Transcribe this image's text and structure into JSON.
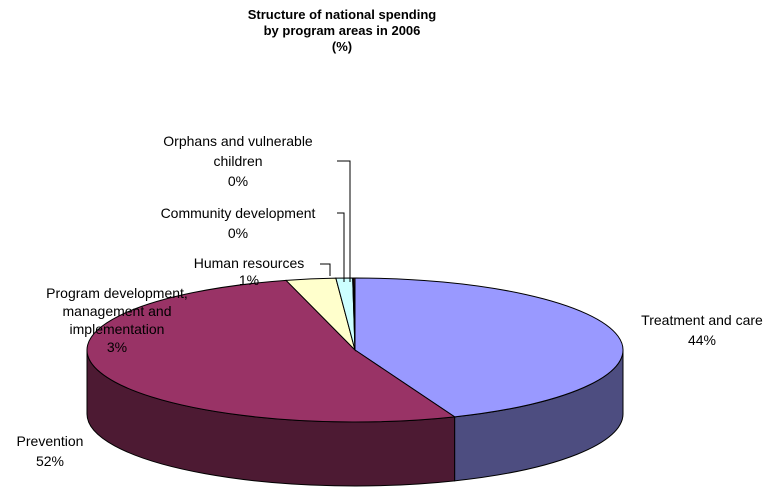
{
  "chart_data": {
    "type": "pie",
    "style": "3d",
    "title": [
      "Structure of national spending",
      "by program areas in 2006",
      "(%)"
    ],
    "slices": [
      {
        "name": "Treatment and care",
        "value": 44,
        "label": "44%",
        "color": "#9999ff",
        "side_color": "#4d4d80"
      },
      {
        "name": "Prevention",
        "value": 52,
        "label": "52%",
        "color": "#993366",
        "side_color": "#4d1a33"
      },
      {
        "name": "Program development, management and implementation",
        "value": 3,
        "label": "3%",
        "color": "#ffffcc",
        "side_color": "#808066"
      },
      {
        "name": "Human resources",
        "value": 1,
        "label": "1%",
        "color": "#ccffff",
        "side_color": "#668080"
      },
      {
        "name": "Community development",
        "value": 0,
        "label": "0%",
        "color": "#660066",
        "side_color": "#330033"
      },
      {
        "name": "Orphans and vulnerable children",
        "value": 0,
        "label": "0%",
        "color": "#ff8080",
        "side_color": "#804040"
      }
    ],
    "data_labels": [
      {
        "lines": [
          "Treatment and care",
          "44%"
        ]
      },
      {
        "lines": [
          "Prevention",
          "52%"
        ]
      },
      {
        "lines": [
          "Program development,",
          "management and",
          "implementation",
          "3%"
        ]
      },
      {
        "lines": [
          "Human resources",
          "1%"
        ]
      },
      {
        "lines": [
          "Community development",
          "0%"
        ]
      },
      {
        "lines": [
          "Orphans and vulnerable",
          "children",
          "0%"
        ]
      }
    ],
    "legend": "none"
  }
}
